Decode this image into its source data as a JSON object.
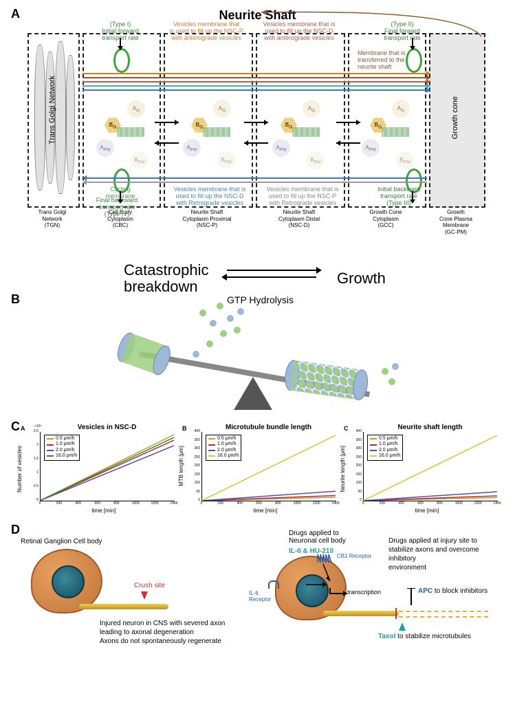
{
  "panelA": {
    "title": "Neurite Shaft",
    "label": "A",
    "type_labels": {
      "type1": "(Type I)",
      "type1_sub": "Initial forward\ntransport rate",
      "type2": "(Type II)",
      "type2_sub": "Final forward\ntransport rate",
      "type3": "(Type III)",
      "type3_sub": "Initial backward\ntransport rate",
      "type4": "(Type IV)",
      "type4_sub": "Final backward\ntransport rate"
    },
    "top_annotations": {
      "orange": "Vesicles membrane that\nis used to fill up the NSC-P\nwith anterograde vesicles",
      "red": "Vesicles membrane that is\nused to fill up the NSC-D\nwith anterograde vesicles",
      "brown": "Membrane that is\ntransferred to the\nneurite shaft"
    },
    "bottom_annotations": {
      "cycling": "Cycling\nmembrane",
      "blue": "Vesicles membrane that is\nused to fill up the NSC-D\nwith Retrograde vesicles",
      "grey": "Vesicles membrane that is\nused to fill up the NSC-P\nwith Retrograde vesicles"
    },
    "vertical_labels": {
      "tgn": "Trans Golgi Network",
      "gc": "Growth cone"
    },
    "molecule_labels": {
      "ag": "A_G",
      "bg": "B_G",
      "apm": "A_PM",
      "bpm": "B_PM"
    },
    "compartments": [
      {
        "name": "Trans Golgi\nNetwork\n(TGN)"
      },
      {
        "name": "Cell Body\nCytoplasm\n(CBC)"
      },
      {
        "name": "Neurite Shaft\nCytoplasm Proximal\n(NSC-P)"
      },
      {
        "name": "Neurite Shaft\nCytoplasm Distal\n(NSC-D)"
      },
      {
        "name": "Growth Cone\nCytoplasm\n(GCC)"
      },
      {
        "name": "Growth\nCone  Plasma\nMembrane\n(GC-PM)"
      }
    ],
    "colors": {
      "title": "#000000",
      "green": "#3aa33a",
      "orange": "#d97a2b",
      "red": "#c05a3a",
      "brown": "#8b5a2b",
      "cyan": "#3ab3b3",
      "blue": "#3a78c0",
      "grey": "#999999",
      "dash": "#222222"
    }
  },
  "panelB": {
    "label": "B",
    "left_text_top": "Catastrophic",
    "left_text_bot": "breakdown",
    "right_text": "Growth",
    "mid_text": "GTP Hydrolysis",
    "bead_colors": {
      "green": "#9fcf7f",
      "blue": "#9fb8d8"
    },
    "seesaw": {
      "bar_color": "#8a8a8a",
      "tri_color": "#555555",
      "angle_deg": 10
    }
  },
  "panelC": {
    "label": "C",
    "charts": [
      {
        "sublabel": "A",
        "title": "Vesicles in NSC-D",
        "ylabel": "Number of vesicles",
        "xlabel": "time [min]",
        "ymax_label": "×10⁴",
        "xlim": [
          0,
          1400
        ],
        "ylim": [
          0,
          2.5
        ],
        "xticks": [
          0,
          200,
          400,
          600,
          800,
          1000,
          1200,
          1400
        ],
        "yticks": [
          0,
          0.5,
          1,
          1.5,
          2,
          2.5
        ],
        "series": [
          {
            "color": "#c99a2e",
            "label": "0.5 μm/h",
            "end": 2.4
          },
          {
            "color": "#b03030",
            "label": "1.0 μm/h",
            "end": 2.2
          },
          {
            "color": "#5a4ab0",
            "label": "2.0 μm/h",
            "end": 2.0
          },
          {
            "color": "#2e8b2e",
            "label": "16.0 μm/h",
            "end": 2.3
          }
        ]
      },
      {
        "sublabel": "B",
        "title": "Microtubule bundle length",
        "ylabel": "MTB length [μm]",
        "xlabel": "time [min]",
        "xlim": [
          0,
          1400
        ],
        "ylim": [
          0,
          400
        ],
        "xticks": [
          0,
          200,
          400,
          600,
          800,
          1000,
          1200,
          1400
        ],
        "yticks": [
          0,
          50,
          100,
          150,
          200,
          250,
          300,
          350,
          400
        ],
        "series": [
          {
            "color": "#c99a2e",
            "label": "0.5 μm/h",
            "end": 20
          },
          {
            "color": "#b03030",
            "label": "1.0 μm/h",
            "end": 30
          },
          {
            "color": "#5a4ab0",
            "label": "2.0 μm/h",
            "end": 55
          },
          {
            "color": "#e0c040",
            "label": "16.0 μm/h",
            "end": 380
          }
        ]
      },
      {
        "sublabel": "C",
        "title": "Neurite shaft length",
        "ylabel": "Neurite length [μm]",
        "xlabel": "time [min]",
        "xlim": [
          0,
          1400
        ],
        "ylim": [
          0,
          400
        ],
        "xticks": [
          0,
          200,
          400,
          600,
          800,
          1000,
          1200,
          1400
        ],
        "yticks": [
          0,
          50,
          100,
          150,
          200,
          250,
          300,
          350,
          400
        ],
        "series": [
          {
            "color": "#c99a2e",
            "label": "0.5 μm/h",
            "end": 18
          },
          {
            "color": "#b03030",
            "label": "1.0 μm/h",
            "end": 28
          },
          {
            "color": "#5a4ab0",
            "label": "2.0 μm/h",
            "end": 52
          },
          {
            "color": "#e0c040",
            "label": "16.0 μm/h",
            "end": 380
          }
        ]
      }
    ]
  },
  "panelD": {
    "label": "D",
    "left_title": "Retinal Ganglion Cell body",
    "crush": "Crush site",
    "left_text": "Injured neuron in CNS with severed axon\nleading to axonal degeneration\nAxons do not spontaneously regenerate",
    "right_top": "Drugs applied to\nNeuronal cell body",
    "drugs": "IL-6 & HU-210",
    "il6_receptor": "IL-6\nReceptor",
    "cb1": "CB1 Receptor",
    "transcription": "transcription",
    "right_text": "Drugs applied at injury site to\nstabilize axons and overcome inhibitory\nenvironment",
    "apc": "APC to block inhibitors",
    "taxol": "Taxol to stabilize microtubules",
    "colors": {
      "cell_outer": "#d88a4a",
      "cell_inner": "#e8a060",
      "nucleus_outer": "#2a6a7a",
      "nucleus_inner": "#1a4a5a",
      "teal": "#1aa0a0",
      "blue": "#2a5aa0",
      "apc": "#2a5aa0",
      "red": "#d03030",
      "axon": "#d8a030"
    }
  }
}
